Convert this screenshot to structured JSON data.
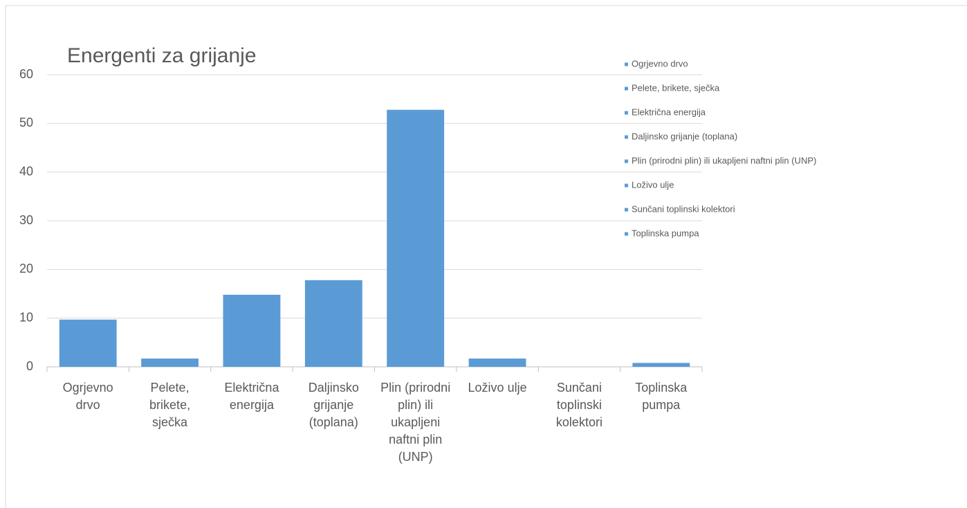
{
  "chart_data": {
    "type": "bar",
    "title": "Energenti za grijanje",
    "categories": [
      "Ogrjevno drvo",
      "Pelete, brikete, sječka",
      "Električna energija",
      "Daljinsko grijanje (toplana)",
      "Plin (prirodni plin) ili ukapljeni naftni plin (UNP)",
      "Loživo ulje",
      "Sunčani toplinski kolektori",
      "Toplinska pumpa"
    ],
    "values": [
      9.7,
      1.7,
      14.8,
      17.8,
      52.8,
      1.7,
      0,
      0.8
    ],
    "color": "#5b9bd5",
    "ylim": [
      0,
      60
    ],
    "yticks": [
      0,
      10,
      20,
      30,
      40,
      50,
      60
    ],
    "grid": true,
    "legend": "top-right"
  }
}
